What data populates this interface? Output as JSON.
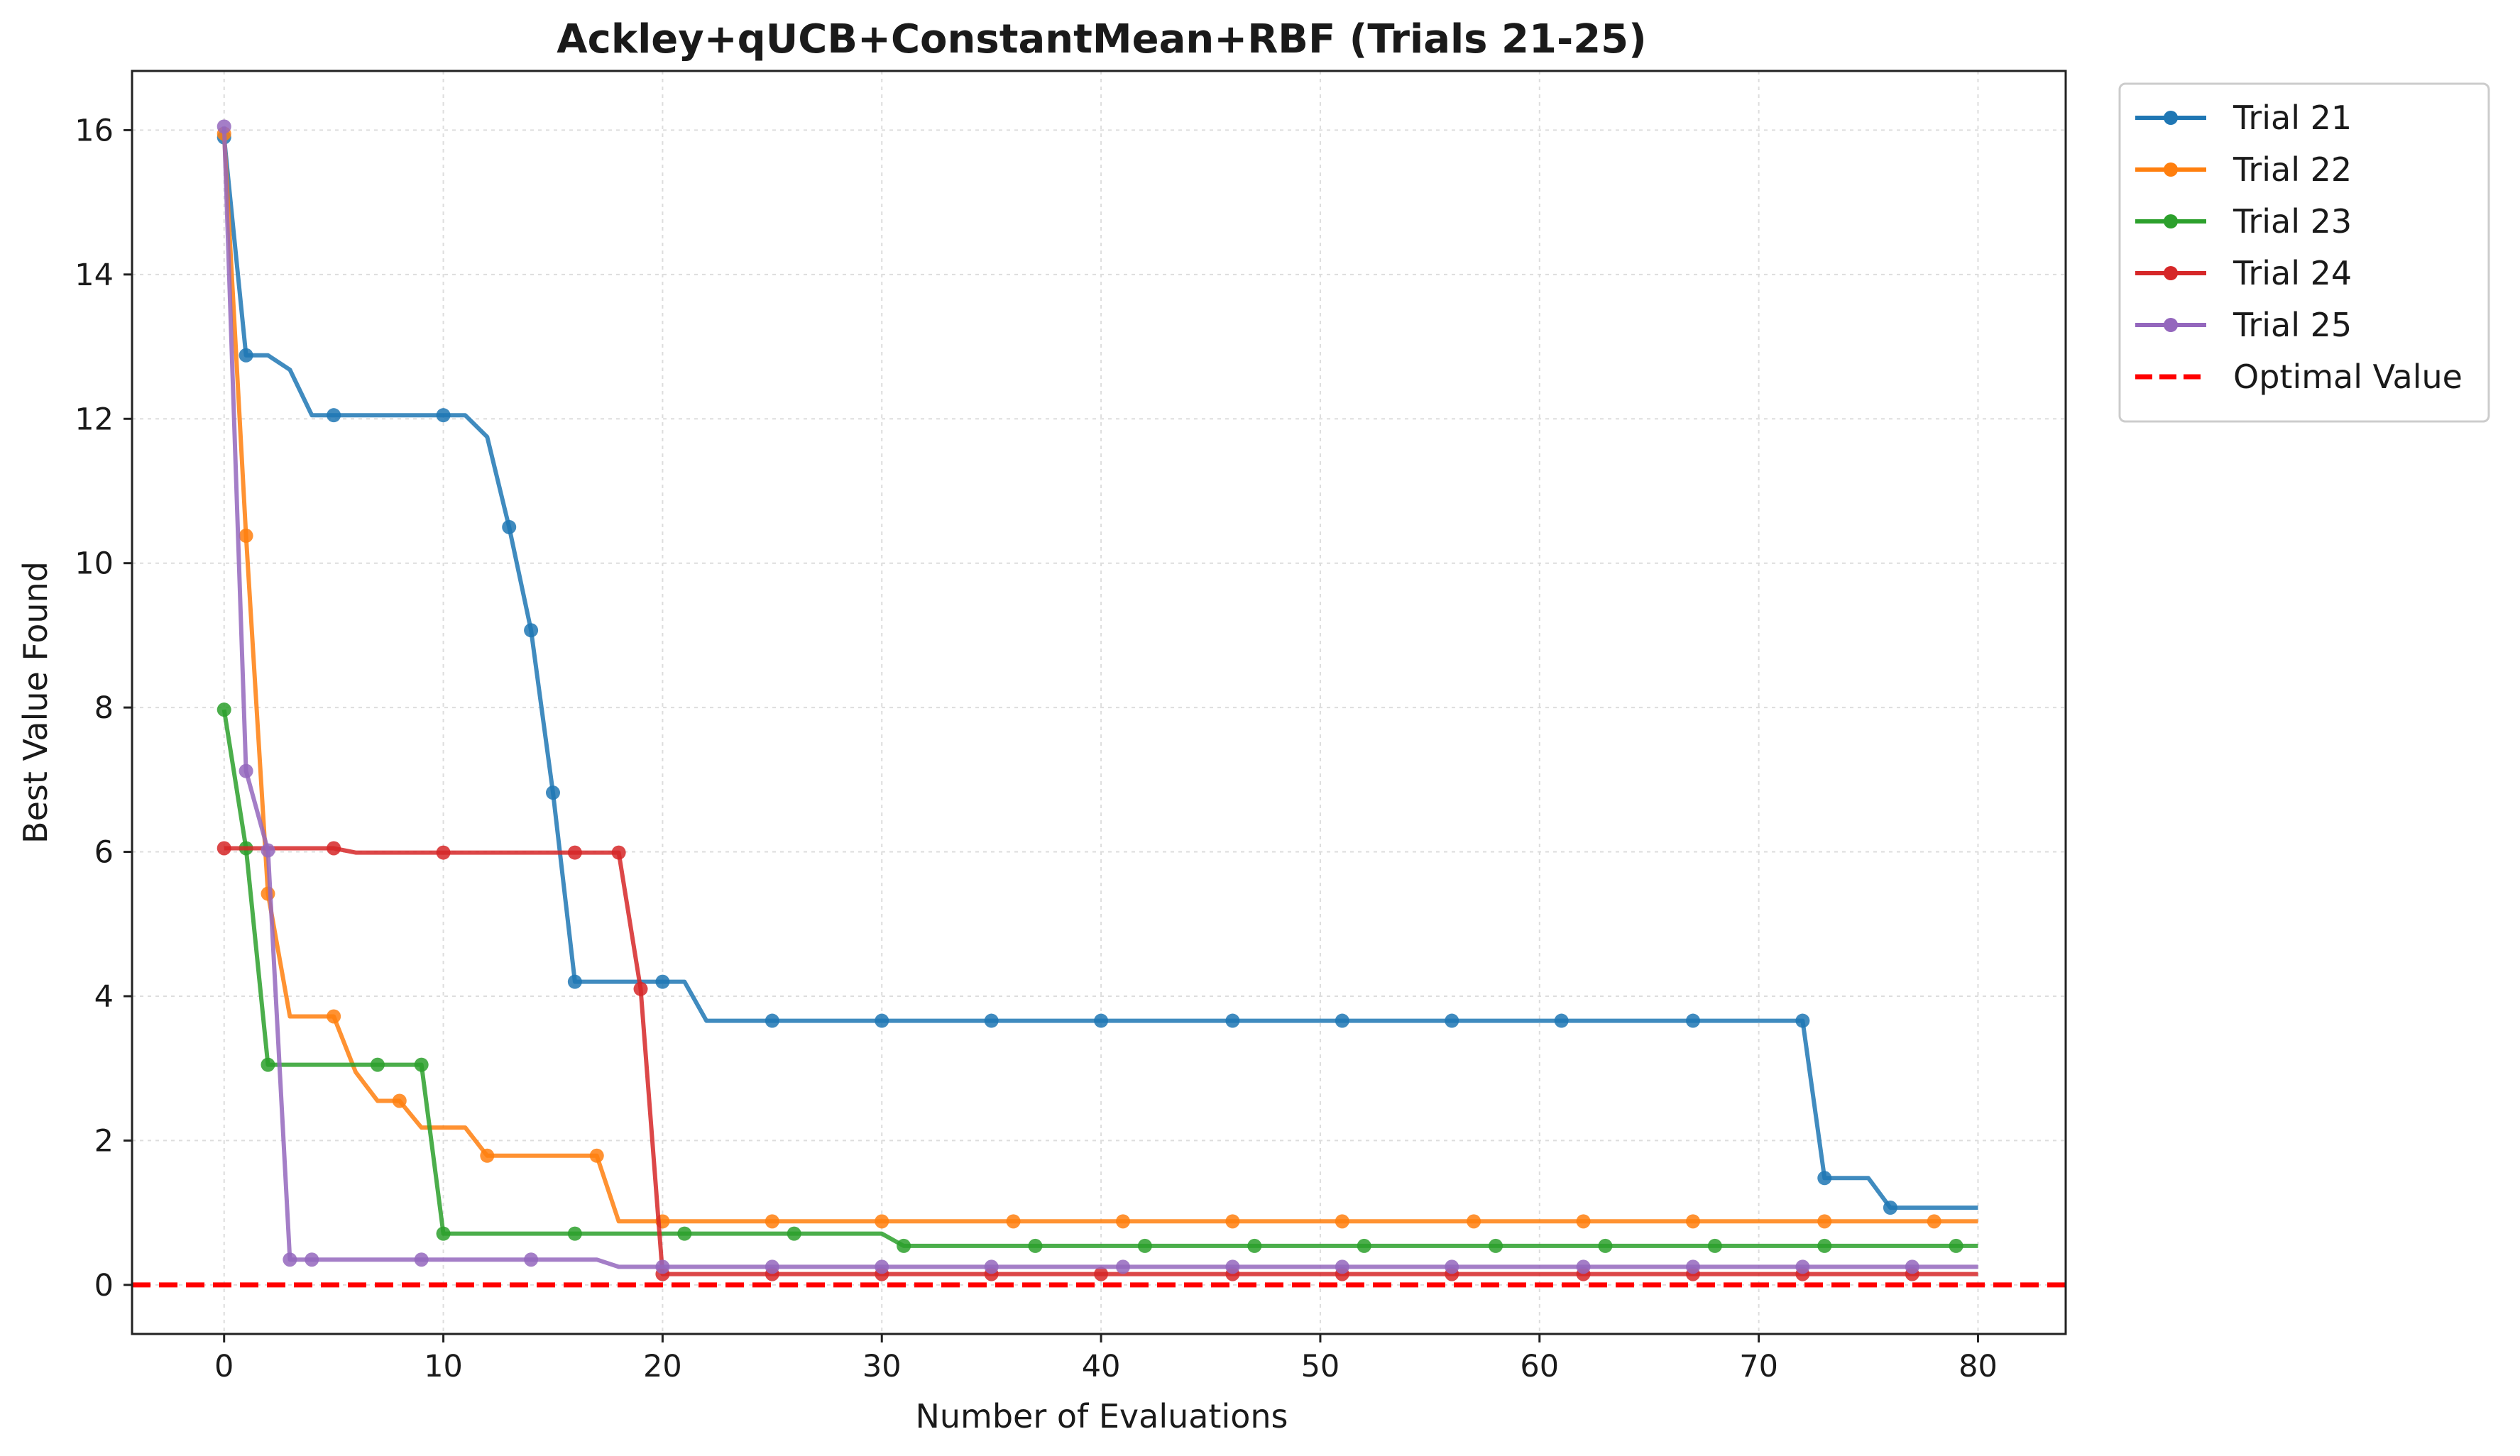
{
  "chart_data": {
    "type": "line",
    "title": "Ackley+qUCB+ConstantMean+RBF (Trials 21-25)",
    "xlabel": "Number of Evaluations",
    "ylabel": "Best Value Found",
    "xlim": [
      -4.2,
      84.0
    ],
    "ylim": [
      -0.68,
      16.82
    ],
    "xticks": [
      0,
      10,
      20,
      30,
      40,
      50,
      60,
      70,
      80
    ],
    "yticks": [
      0,
      2,
      4,
      6,
      8,
      10,
      12,
      14,
      16
    ],
    "grid": true,
    "legend_position": "outside-top-right",
    "series": [
      {
        "name": "Trial 21",
        "color": "#1f77b4",
        "x": [
          0,
          1,
          2,
          3,
          4,
          5,
          6,
          7,
          8,
          9,
          10,
          11,
          12,
          13,
          14,
          15,
          16,
          17,
          18,
          19,
          20,
          21,
          22,
          23,
          24,
          25,
          26,
          27,
          28,
          29,
          30,
          31,
          32,
          33,
          34,
          35,
          36,
          37,
          38,
          39,
          40,
          41,
          42,
          43,
          44,
          45,
          46,
          47,
          48,
          49,
          50,
          51,
          52,
          53,
          54,
          55,
          56,
          57,
          58,
          59,
          60,
          61,
          62,
          63,
          64,
          65,
          66,
          67,
          68,
          69,
          70,
          71,
          72,
          73,
          74,
          75,
          76,
          77,
          78,
          79,
          80
        ],
        "values": [
          15.9,
          12.88,
          12.88,
          12.68,
          12.05,
          12.05,
          12.05,
          12.05,
          12.05,
          12.05,
          12.05,
          12.05,
          11.75,
          10.5,
          9.07,
          6.82,
          4.2,
          4.2,
          4.2,
          4.2,
          4.2,
          4.2,
          3.66,
          3.66,
          3.66,
          3.66,
          3.66,
          3.66,
          3.66,
          3.66,
          3.66,
          3.66,
          3.66,
          3.66,
          3.66,
          3.66,
          3.66,
          3.66,
          3.66,
          3.66,
          3.66,
          3.66,
          3.66,
          3.66,
          3.66,
          3.66,
          3.66,
          3.66,
          3.66,
          3.66,
          3.66,
          3.66,
          3.66,
          3.66,
          3.66,
          3.66,
          3.66,
          3.66,
          3.66,
          3.66,
          3.66,
          3.66,
          3.66,
          3.66,
          3.66,
          3.66,
          3.66,
          3.66,
          3.66,
          3.66,
          3.66,
          3.66,
          3.66,
          1.48,
          1.48,
          1.48,
          1.07,
          1.07,
          1.07,
          1.07,
          1.07
        ],
        "markers": [
          0,
          1,
          5,
          10,
          13,
          14,
          15,
          16,
          20,
          25,
          30,
          35,
          40,
          46,
          51,
          56,
          61,
          67,
          72,
          73,
          76
        ]
      },
      {
        "name": "Trial 22",
        "color": "#ff7f0e",
        "x": [
          0,
          1,
          2,
          3,
          4,
          5,
          6,
          7,
          8,
          9,
          10,
          11,
          12,
          13,
          14,
          15,
          16,
          17,
          18,
          19,
          20,
          80
        ],
        "values": [
          15.95,
          10.38,
          5.42,
          3.72,
          3.72,
          3.72,
          2.95,
          2.55,
          2.55,
          2.18,
          2.18,
          2.18,
          1.79,
          1.79,
          1.79,
          1.79,
          1.79,
          1.79,
          0.88,
          0.88,
          0.88,
          0.88
        ],
        "markers": [
          0,
          1,
          2,
          5,
          8,
          12,
          17,
          20,
          25,
          30,
          36,
          41,
          46,
          51,
          57,
          62,
          67,
          73,
          78
        ]
      },
      {
        "name": "Trial 23",
        "color": "#2ca02c",
        "x": [
          0,
          1,
          2,
          3,
          4,
          5,
          6,
          7,
          8,
          9,
          10,
          30,
          31,
          80
        ],
        "values": [
          7.97,
          6.05,
          3.05,
          3.05,
          3.05,
          3.05,
          3.05,
          3.05,
          3.05,
          3.05,
          0.71,
          0.71,
          0.54,
          0.54
        ],
        "markers": [
          0,
          1,
          2,
          7,
          9,
          10,
          16,
          21,
          26,
          31,
          37,
          42,
          47,
          52,
          58,
          63,
          68,
          73,
          79
        ]
      },
      {
        "name": "Trial 24",
        "color": "#d62728",
        "x": [
          0,
          5,
          6,
          18,
          19,
          20,
          80
        ],
        "values": [
          6.05,
          6.05,
          5.99,
          5.99,
          4.1,
          0.15,
          0.15
        ],
        "markers": [
          0,
          5,
          10,
          16,
          18,
          19,
          20,
          25,
          30,
          35,
          40,
          46,
          51,
          56,
          62,
          67,
          72,
          77
        ]
      },
      {
        "name": "Trial 25",
        "color": "#9467bd",
        "x": [
          0,
          1,
          2,
          3,
          4,
          17,
          18,
          80
        ],
        "values": [
          16.05,
          7.12,
          6.02,
          0.35,
          0.35,
          0.35,
          0.25,
          0.25
        ],
        "markers": [
          0,
          1,
          2,
          3,
          4,
          9,
          14,
          20,
          25,
          30,
          35,
          41,
          46,
          51,
          56,
          62,
          67,
          72,
          77
        ]
      }
    ],
    "reference_line": {
      "name": "Optimal Value",
      "y": 0,
      "color": "#ff0000",
      "style": "dashed"
    }
  }
}
